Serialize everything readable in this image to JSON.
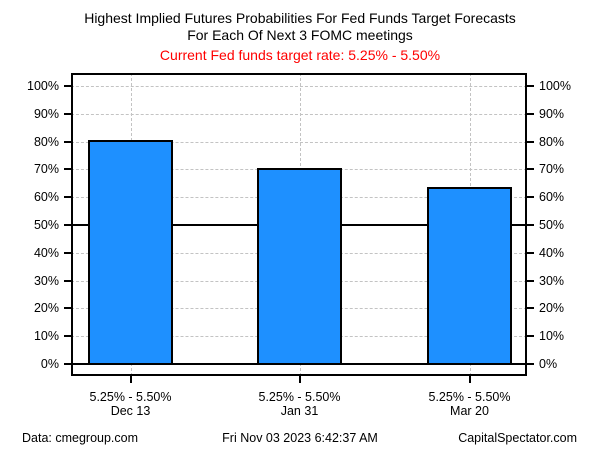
{
  "title": {
    "line1": "Highest Implied Futures Probabilities For Fed Funds Target Forecasts",
    "line2": "For Each Of Next 3 FOMC meetings"
  },
  "subtitle": {
    "text": "Current Fed funds target rate: 5.25% - 5.50%",
    "color": "#ff0000"
  },
  "chart_data": {
    "type": "bar",
    "title": "Highest Implied Futures Probabilities For Fed Funds Target Forecasts For Each Of Next 3 FOMC meetings",
    "subtitle": "Current Fed funds target rate: 5.25% - 5.50%",
    "categories": [
      "Dec 13",
      "Jan 31",
      "Mar 20"
    ],
    "bar_rate_labels": [
      "5.25% - 5.50%",
      "5.25% - 5.50%",
      "5.25% - 5.50%"
    ],
    "values": [
      80.5,
      70.4,
      63.6
    ],
    "ylabel": "",
    "xlabel": "",
    "ylim": [
      0,
      100
    ],
    "y_ticks": [
      {
        "v": 0,
        "label": "0%"
      },
      {
        "v": 10,
        "label": "10%"
      },
      {
        "v": 20,
        "label": "20%"
      },
      {
        "v": 30,
        "label": "30%"
      },
      {
        "v": 40,
        "label": "40%"
      },
      {
        "v": 50,
        "label": "50%"
      },
      {
        "v": 60,
        "label": "60%"
      },
      {
        "v": 70,
        "label": "70%"
      },
      {
        "v": 80,
        "label": "80%"
      },
      {
        "v": 90,
        "label": "90%"
      },
      {
        "v": 100,
        "label": "100%"
      }
    ],
    "reference_line": 50,
    "bar_color": "#1e90ff",
    "bar_border_color": "#000000",
    "grid": true,
    "grid_color": "#c3c3c3",
    "legend": "none",
    "y_axis_sides": "both"
  },
  "footer": {
    "left": "Data: cmegroup.com",
    "center": "Fri Nov 03 2023 6:42:37 AM",
    "right": "CapitalSpectator.com"
  }
}
